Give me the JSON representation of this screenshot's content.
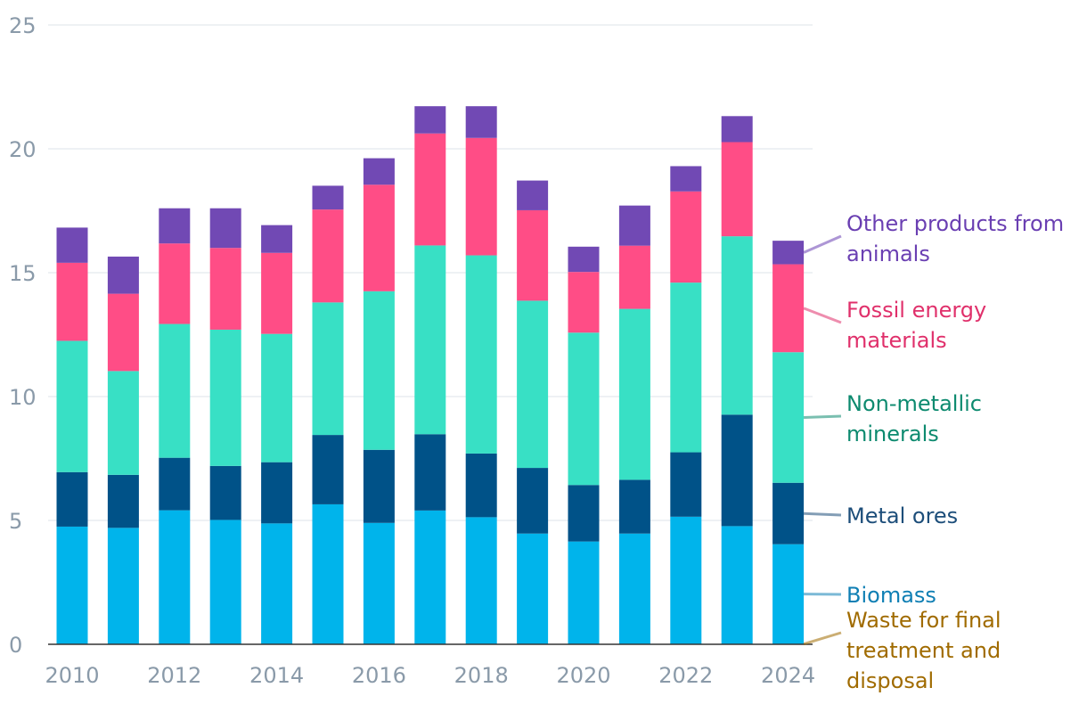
{
  "chart_data": {
    "type": "bar",
    "stacked": true,
    "title": "",
    "xlabel": "",
    "ylabel": "",
    "ylim": [
      0,
      25
    ],
    "yticks": [
      0,
      5,
      10,
      15,
      20,
      25
    ],
    "xtick_labels": [
      "2010",
      "2012",
      "2014",
      "2016",
      "2018",
      "2020",
      "2022",
      "2024"
    ],
    "grid": true,
    "legend_position": "right",
    "categories": [
      "2010",
      "2011",
      "2012",
      "2013",
      "2014",
      "2015",
      "2016",
      "2017",
      "2018",
      "2019",
      "2020",
      "2021",
      "2022",
      "2023",
      "2024"
    ],
    "series": [
      {
        "name": "Waste for final treatment and disposal",
        "legend_lines": [
          "Waste for final",
          "treatment and",
          "disposal"
        ],
        "color": "#00b8e6",
        "label_color": "#a06b00",
        "values": [
          0.02,
          0.02,
          0.02,
          0.02,
          0.02,
          0.02,
          0.02,
          0.02,
          0.02,
          0.02,
          0.02,
          0.02,
          0.02,
          0.02,
          0.02
        ]
      },
      {
        "name": "Biomass",
        "legend_lines": [
          "Biomass"
        ],
        "color": "#00b4eb",
        "label_color": "#0f7fb4",
        "values": [
          4.73,
          4.68,
          5.39,
          5.0,
          4.86,
          5.63,
          4.88,
          5.38,
          5.11,
          4.45,
          4.13,
          4.45,
          5.13,
          4.75,
          4.02
        ]
      },
      {
        "name": "Metal ores",
        "legend_lines": [
          "Metal ores"
        ],
        "color": "#005288",
        "label_color": "#1d4e7a",
        "values": [
          2.2,
          2.14,
          2.12,
          2.18,
          2.47,
          2.8,
          2.95,
          3.08,
          2.57,
          2.65,
          2.28,
          2.17,
          2.6,
          4.5,
          2.48
        ]
      },
      {
        "name": "Non-metallic minerals",
        "legend_lines": [
          "Non-metallic",
          "minerals"
        ],
        "color": "#38e0c5",
        "label_color": "#0d8a6f",
        "values": [
          5.3,
          4.19,
          5.4,
          5.5,
          5.18,
          5.35,
          6.4,
          7.62,
          8.0,
          6.75,
          6.15,
          6.9,
          6.85,
          7.2,
          5.27
        ]
      },
      {
        "name": "Fossil energy materials",
        "legend_lines": [
          "Fossil energy",
          "materials"
        ],
        "color": "#ff4d86",
        "label_color": "#e0306b",
        "values": [
          3.15,
          3.12,
          3.25,
          3.3,
          3.27,
          3.75,
          4.3,
          4.52,
          4.74,
          3.65,
          2.45,
          2.55,
          3.68,
          3.8,
          3.55
        ]
      },
      {
        "name": "Other products from animals",
        "legend_lines": [
          "Other products from",
          "animals"
        ],
        "color": "#7149b4",
        "label_color": "#6a3fb2",
        "values": [
          1.42,
          1.5,
          1.42,
          1.6,
          1.12,
          0.96,
          1.07,
          1.1,
          1.28,
          1.2,
          1.02,
          1.62,
          1.02,
          1.05,
          0.95
        ]
      }
    ]
  }
}
